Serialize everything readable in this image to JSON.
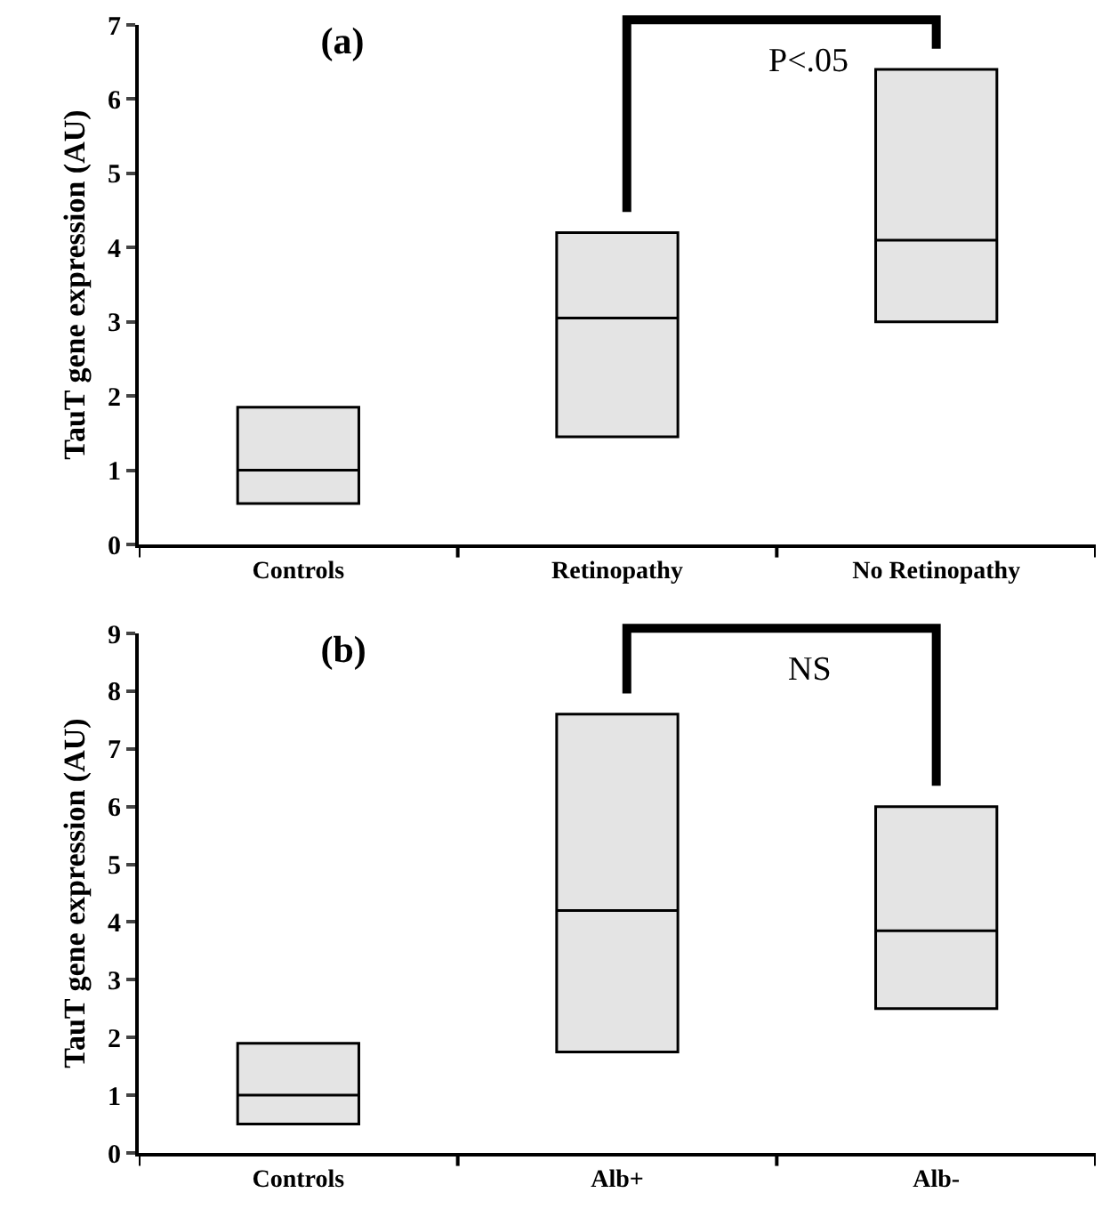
{
  "chart_data": [
    {
      "type": "box",
      "title": "(a)",
      "ylabel": "TauT gene expression (AU)",
      "categories": [
        "Controls",
        "Retinopathy",
        "No Retinopathy"
      ],
      "boxes": [
        {
          "low": 0.55,
          "q1": 0.55,
          "median": 1.0,
          "q3": 1.85,
          "high": 1.85
        },
        {
          "low": 1.45,
          "q1": 1.45,
          "median": 3.05,
          "q3": 4.2,
          "high": 4.2
        },
        {
          "low": 3.0,
          "q1": 3.0,
          "median": 4.1,
          "q3": 6.4,
          "high": 6.4
        }
      ],
      "color": "#e4e4e4",
      "ylim": [
        0,
        7
      ],
      "yticks": [
        0,
        1,
        2,
        3,
        4,
        5,
        6,
        7
      ],
      "grid": false,
      "annotations": [
        "P<.05"
      ]
    },
    {
      "type": "box",
      "title": "(b)",
      "ylabel": "TauT gene expression (AU)",
      "categories": [
        "Controls",
        "Alb+",
        "Alb-"
      ],
      "boxes": [
        {
          "low": 0.5,
          "q1": 0.5,
          "median": 1.0,
          "q3": 1.9,
          "high": 1.9
        },
        {
          "low": 1.75,
          "q1": 1.75,
          "median": 4.2,
          "q3": 7.6,
          "high": 7.6
        },
        {
          "low": 2.5,
          "q1": 2.5,
          "median": 3.85,
          "q3": 6.0,
          "high": 6.0
        }
      ],
      "color": "#e4e4e4",
      "ylim": [
        0,
        9
      ],
      "yticks": [
        0,
        1,
        2,
        3,
        4,
        5,
        6,
        7,
        8,
        9
      ],
      "grid": false,
      "annotations": [
        "NS"
      ]
    }
  ]
}
